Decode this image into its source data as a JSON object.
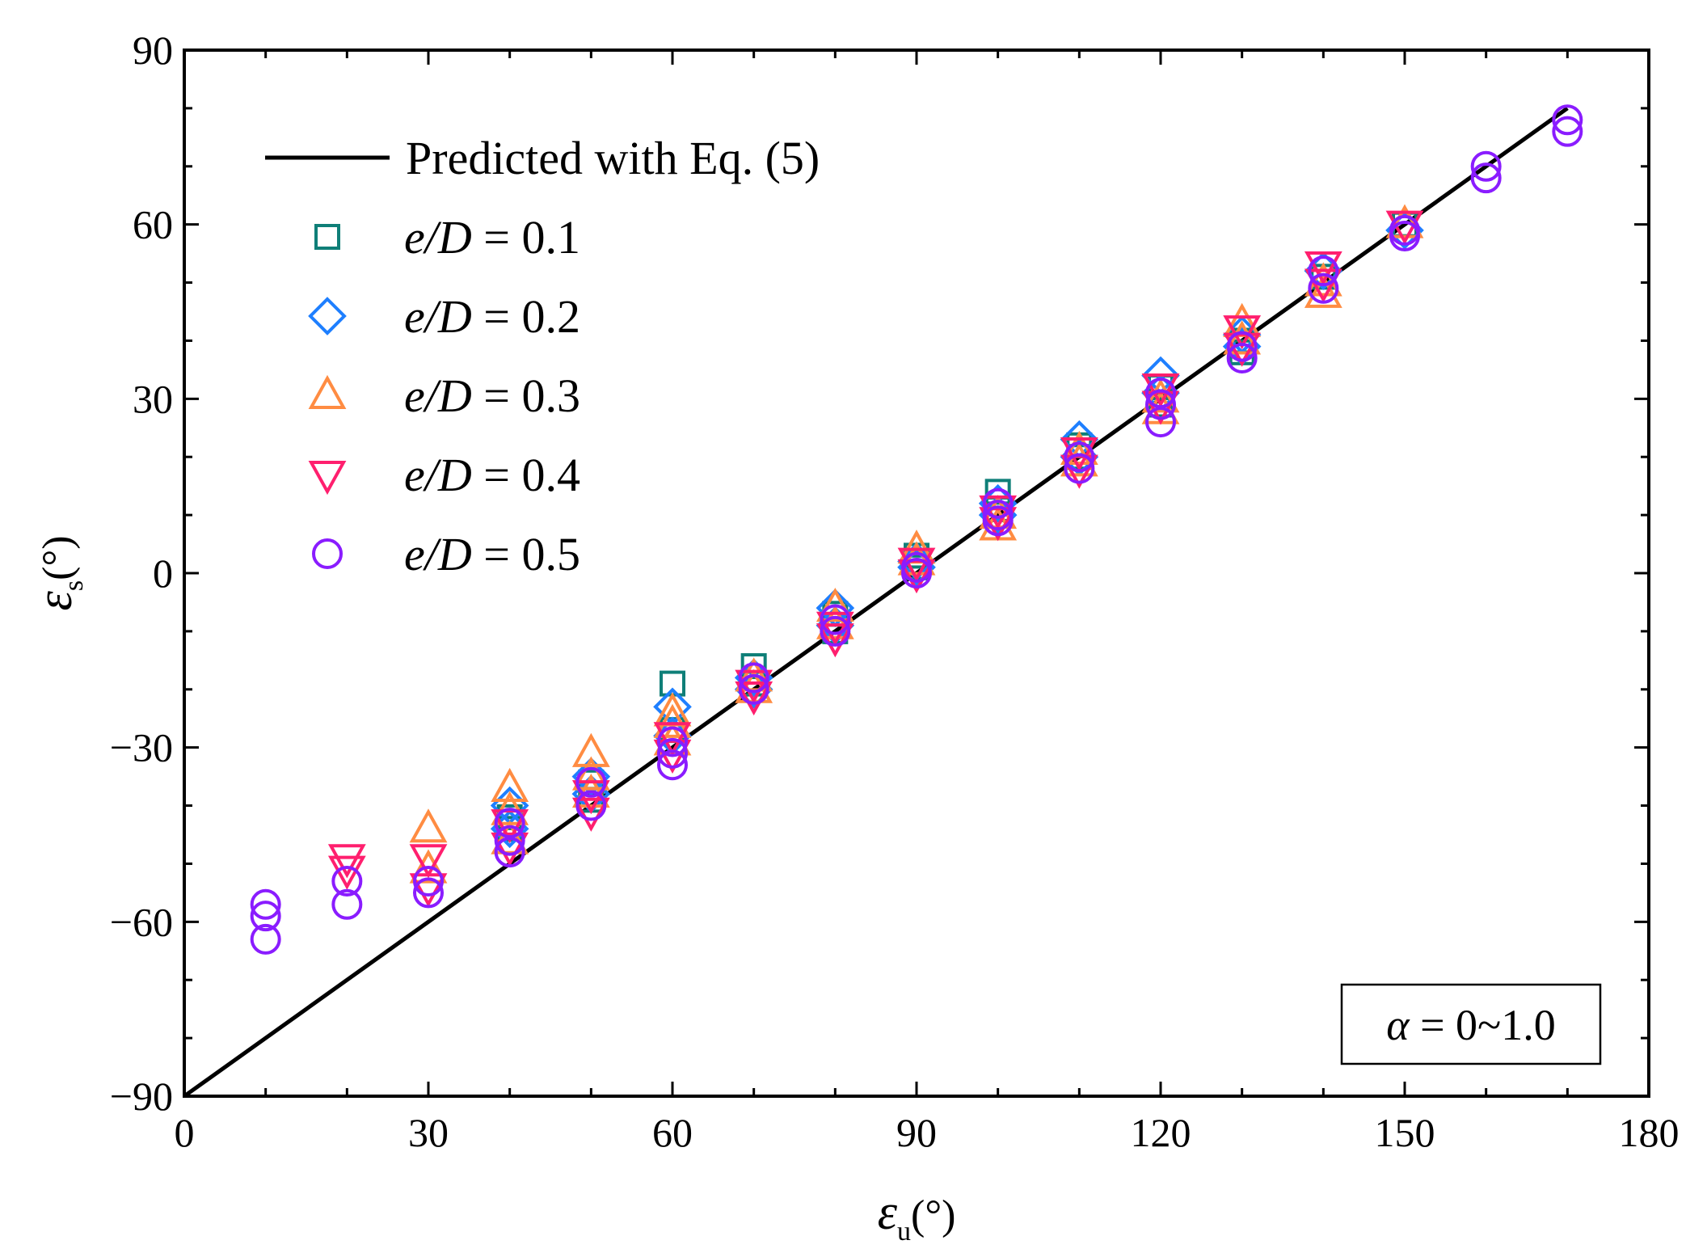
{
  "chart_data": {
    "type": "scatter",
    "title": "",
    "xlabel": {
      "symbol": "ε",
      "subscript": "u",
      "unit": "(°)"
    },
    "ylabel": {
      "symbol": "ε",
      "subscript": "s",
      "unit": "(°)"
    },
    "xlim": [
      0,
      180
    ],
    "ylim": [
      -90,
      90
    ],
    "x_ticks": [
      0,
      30,
      60,
      90,
      120,
      150,
      180
    ],
    "y_ticks": [
      -90,
      -60,
      -30,
      0,
      30,
      60,
      90
    ],
    "x_tick_labels": [
      "0",
      "30",
      "60",
      "90",
      "120",
      "150",
      "180"
    ],
    "y_tick_labels": [
      "−90",
      "−60",
      "−30",
      "0",
      "30",
      "60",
      "90"
    ],
    "grid": false,
    "legend_position": "top-left",
    "line": {
      "name": "Predicted with Eq. (5)",
      "x": [
        0,
        170
      ],
      "y": [
        -90,
        80
      ],
      "color": "#000000"
    },
    "series": [
      {
        "name": "e/D = 0.1",
        "label_var": "e/D",
        "label_eq": " = 0.1",
        "marker": "square",
        "color": "#0f7f78",
        "points": [
          [
            40,
            -42
          ],
          [
            40,
            -44
          ],
          [
            50,
            -36
          ],
          [
            50,
            -39
          ],
          [
            60,
            -19
          ],
          [
            60,
            -27
          ],
          [
            70,
            -16
          ],
          [
            70,
            -19
          ],
          [
            80,
            -7
          ],
          [
            80,
            -10
          ],
          [
            90,
            1
          ],
          [
            90,
            3
          ],
          [
            100,
            14
          ],
          [
            100,
            11
          ],
          [
            110,
            22
          ],
          [
            110,
            20
          ],
          [
            120,
            32
          ],
          [
            120,
            29
          ],
          [
            130,
            40
          ],
          [
            130,
            38
          ],
          [
            140,
            51
          ],
          [
            150,
            60
          ]
        ]
      },
      {
        "name": "e/D = 0.2",
        "label_var": "e/D",
        "label_eq": " = 0.2",
        "marker": "diamond",
        "color": "#1e7fff",
        "points": [
          [
            40,
            -40
          ],
          [
            40,
            -44
          ],
          [
            50,
            -35
          ],
          [
            50,
            -38
          ],
          [
            60,
            -23
          ],
          [
            60,
            -28
          ],
          [
            70,
            -18
          ],
          [
            70,
            -20
          ],
          [
            80,
            -6
          ],
          [
            80,
            -9
          ],
          [
            90,
            1
          ],
          [
            90,
            2
          ],
          [
            100,
            12
          ],
          [
            100,
            10
          ],
          [
            110,
            23
          ],
          [
            110,
            20
          ],
          [
            120,
            34
          ],
          [
            120,
            31
          ],
          [
            130,
            41
          ],
          [
            130,
            39
          ],
          [
            140,
            52
          ],
          [
            150,
            59
          ]
        ]
      },
      {
        "name": "e/D = 0.3",
        "label_var": "e/D",
        "label_eq": " = 0.3",
        "marker": "triangle-up",
        "color": "#ff8c42",
        "points": [
          [
            30,
            -44
          ],
          [
            30,
            -51
          ],
          [
            40,
            -37
          ],
          [
            40,
            -41
          ],
          [
            40,
            -46
          ],
          [
            50,
            -31
          ],
          [
            50,
            -35
          ],
          [
            50,
            -38
          ],
          [
            60,
            -24
          ],
          [
            60,
            -26
          ],
          [
            60,
            -29
          ],
          [
            70,
            -18
          ],
          [
            70,
            -20
          ],
          [
            80,
            -6
          ],
          [
            80,
            -9
          ],
          [
            90,
            4
          ],
          [
            90,
            2
          ],
          [
            100,
            10
          ],
          [
            100,
            8
          ],
          [
            110,
            21
          ],
          [
            110,
            19
          ],
          [
            120,
            30
          ],
          [
            120,
            28
          ],
          [
            130,
            43
          ],
          [
            130,
            40
          ],
          [
            140,
            50
          ],
          [
            140,
            48
          ],
          [
            150,
            60
          ]
        ]
      },
      {
        "name": "e/D = 0.4",
        "label_var": "e/D",
        "label_eq": " = 0.4",
        "marker": "triangle-down",
        "color": "#ff1f6e",
        "points": [
          [
            20,
            -49
          ],
          [
            20,
            -51
          ],
          [
            30,
            -49
          ],
          [
            30,
            -54
          ],
          [
            40,
            -43
          ],
          [
            40,
            -47
          ],
          [
            50,
            -38
          ],
          [
            50,
            -41
          ],
          [
            60,
            -28
          ],
          [
            60,
            -31
          ],
          [
            70,
            -19
          ],
          [
            70,
            -21
          ],
          [
            80,
            -9
          ],
          [
            80,
            -11
          ],
          [
            90,
            2
          ],
          [
            90,
            0
          ],
          [
            100,
            11
          ],
          [
            100,
            9
          ],
          [
            110,
            21
          ],
          [
            110,
            18
          ],
          [
            120,
            32
          ],
          [
            120,
            29
          ],
          [
            130,
            42
          ],
          [
            130,
            39
          ],
          [
            140,
            53
          ],
          [
            140,
            50
          ],
          [
            150,
            60
          ]
        ]
      },
      {
        "name": "e/D = 0.5",
        "label_var": "e/D",
        "label_eq": " = 0.5",
        "marker": "circle",
        "color": "#8a1cff",
        "points": [
          [
            10,
            -57
          ],
          [
            10,
            -59
          ],
          [
            10,
            -63
          ],
          [
            20,
            -53
          ],
          [
            20,
            -57
          ],
          [
            30,
            -53
          ],
          [
            30,
            -55
          ],
          [
            40,
            -43
          ],
          [
            40,
            -46
          ],
          [
            40,
            -48
          ],
          [
            50,
            -36
          ],
          [
            50,
            -40
          ],
          [
            60,
            -29
          ],
          [
            60,
            -31
          ],
          [
            60,
            -33
          ],
          [
            70,
            -18
          ],
          [
            70,
            -20
          ],
          [
            80,
            -8
          ],
          [
            80,
            -10
          ],
          [
            90,
            1
          ],
          [
            90,
            0
          ],
          [
            100,
            12
          ],
          [
            100,
            10
          ],
          [
            100,
            9
          ],
          [
            110,
            20
          ],
          [
            110,
            18
          ],
          [
            120,
            31
          ],
          [
            120,
            29
          ],
          [
            120,
            26
          ],
          [
            130,
            39
          ],
          [
            130,
            37
          ],
          [
            140,
            52
          ],
          [
            140,
            49
          ],
          [
            150,
            59
          ],
          [
            150,
            58
          ],
          [
            160,
            70
          ],
          [
            160,
            68
          ],
          [
            170,
            78
          ],
          [
            170,
            76
          ]
        ]
      }
    ],
    "annotation": {
      "symbol": "α",
      "text": " = 0~1.0",
      "position": "bottom-right"
    }
  }
}
